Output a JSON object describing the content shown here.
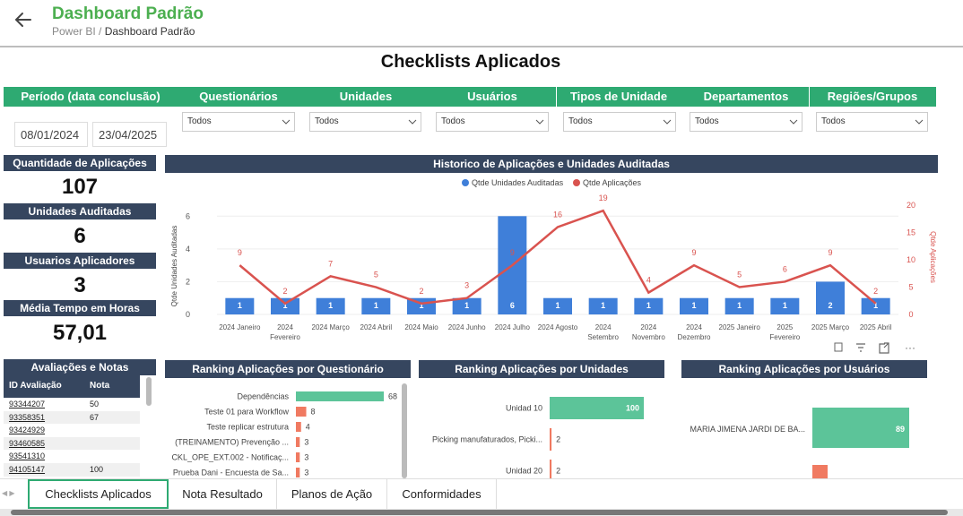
{
  "header": {
    "title": "Dashboard Padrão",
    "breadcrumb_root": "Power BI",
    "breadcrumb_sep": " / ",
    "breadcrumb_current": "Dashboard Padrão"
  },
  "report": {
    "title": "Checklists Aplicados"
  },
  "filters": {
    "period_label": "Período (data conclusão)",
    "date_start": "08/01/2024",
    "date_end": "23/04/2025",
    "slicers": [
      {
        "label": "Questionários",
        "value": "Todos"
      },
      {
        "label": "Unidades",
        "value": "Todos"
      },
      {
        "label": "Usuários",
        "value": "Todos"
      },
      {
        "label": "Tipos de Unidade",
        "value": "Todos"
      },
      {
        "label": "Departamentos",
        "value": "Todos"
      },
      {
        "label": "Regiões/Grupos",
        "value": "Todos"
      }
    ]
  },
  "kpis": [
    {
      "label": "Quantidade de Aplicações",
      "value": "107"
    },
    {
      "label": "Unidades Auditadas",
      "value": "6"
    },
    {
      "label": "Usuarios Aplicadores",
      "value": "3"
    },
    {
      "label": "Média Tempo em Horas",
      "value": "57,01"
    }
  ],
  "chart_data": [
    {
      "type": "bar+line",
      "title": "Historico de Aplicações e Unidades Auditadas",
      "categories": [
        "2024 Janeiro",
        "2024 Fevereiro",
        "2024 Março",
        "2024 Abril",
        "2024 Maio",
        "2024 Junho",
        "2024 Julho",
        "2024 Agosto",
        "2024 Setembro",
        "2024 Novembro",
        "2024 Dezembro",
        "2025 Janeiro",
        "2025 Fevereiro",
        "2025 Março",
        "2025 Abril"
      ],
      "series": [
        {
          "name": "Qtde Unidades Auditadas",
          "type": "bar",
          "axis": "left",
          "color": "#3f7fd9",
          "values": [
            1,
            1,
            1,
            1,
            1,
            1,
            6,
            1,
            1,
            1,
            1,
            1,
            1,
            2,
            1
          ]
        },
        {
          "name": "Qtde Aplicações",
          "type": "line",
          "axis": "right",
          "color": "#d9534f",
          "values": [
            9,
            2,
            7,
            5,
            2,
            3,
            9,
            16,
            19,
            4,
            9,
            5,
            6,
            9,
            2
          ]
        }
      ],
      "ylabel": "Qtde Unidades Auditadas",
      "y2label": "Qtde Aplicações",
      "ylim": [
        0,
        7
      ],
      "y2lim": [
        0,
        21
      ],
      "yticks": [
        0,
        2,
        4,
        6
      ],
      "y2ticks": [
        0,
        5,
        10,
        15,
        20
      ],
      "legend": "top-center",
      "grid": true
    },
    {
      "type": "bar",
      "title": "Ranking Aplicações por Questionário",
      "categories": [
        "Dependências",
        "Teste 01 para Workflow",
        "Teste replicar estrutura",
        "(TREINAMENTO) Prevenção ...",
        "CKL_OPE_EXT.002 - Notificaç...",
        "Prueba Dani - Encuesta de Sa..."
      ],
      "values": [
        68,
        8,
        4,
        3,
        3,
        3
      ],
      "orientation": "horizontal"
    },
    {
      "type": "bar",
      "title": "Ranking Aplicações por Unidades",
      "categories": [
        "Unidad 10",
        "Picking manufaturados, Picki...",
        "Unidad 20"
      ],
      "values": [
        100,
        2,
        2
      ],
      "orientation": "horizontal"
    },
    {
      "type": "bar",
      "title": "Ranking Aplicações por Usuários",
      "categories": [
        "MARIA JIMENA JARDI DE BA..."
      ],
      "values": [
        89
      ],
      "orientation": "horizontal"
    }
  ],
  "table": {
    "title": "Avaliações e Notas",
    "columns": [
      "ID Avaliação",
      "Nota"
    ],
    "rows": [
      [
        "93344207",
        "50"
      ],
      [
        "93358351",
        "67"
      ],
      [
        "93424929",
        ""
      ],
      [
        "93460585",
        ""
      ],
      [
        "93541310",
        ""
      ],
      [
        "94105147",
        "100"
      ]
    ]
  },
  "tabs": [
    "Checklists Aplicados",
    "Nota Resultado",
    "Planos de Ação",
    "Conformidades"
  ],
  "colors": {
    "accent_green": "#2eaa72",
    "header_green": "#4caf50",
    "panel_navy": "#36465f",
    "bar_blue": "#3f7fd9",
    "line_red": "#d9534f",
    "bar_salmon": "#f07a61"
  }
}
